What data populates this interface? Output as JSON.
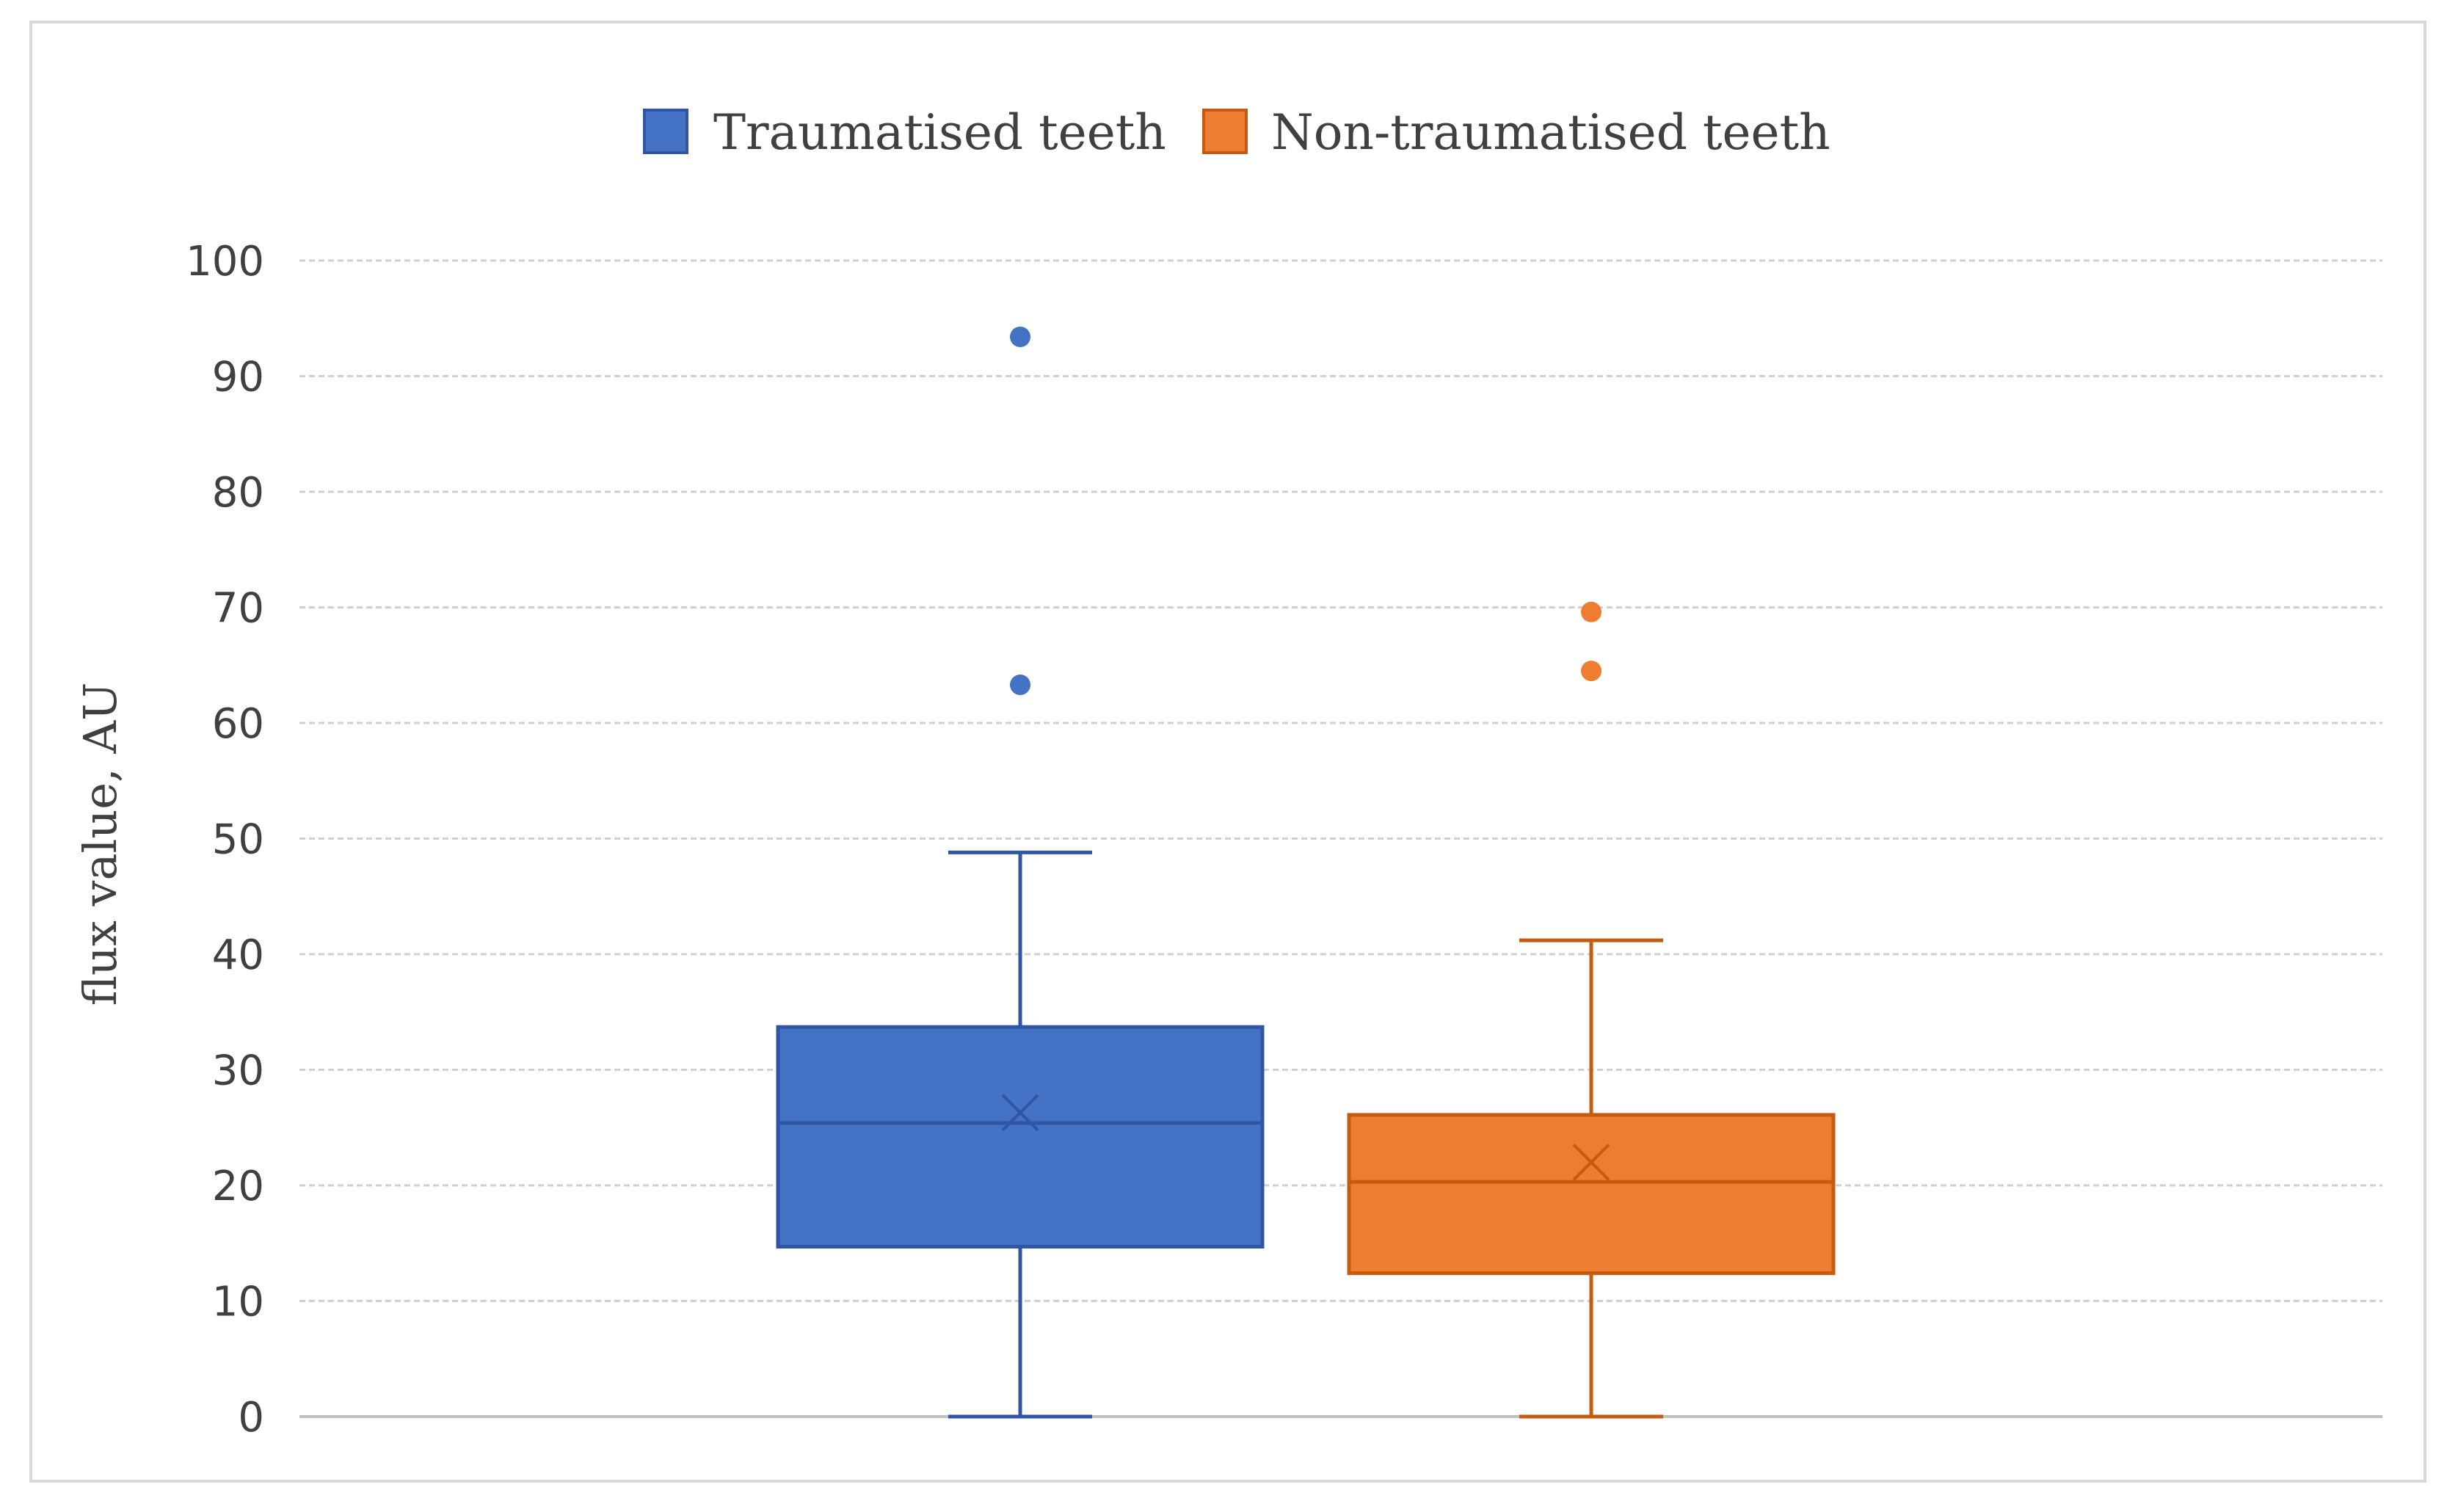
{
  "chart_data": {
    "type": "box",
    "title": "",
    "xlabel": "",
    "ylabel": "flux value, AU",
    "ylim": [
      0,
      100
    ],
    "yticks": [
      "0",
      "10",
      "20",
      "30",
      "40",
      "50",
      "60",
      "70",
      "80",
      "90",
      "100"
    ],
    "grid": true,
    "legend_position": "top",
    "series": [
      {
        "name": "Traumatised teeth",
        "color": "#4472c4",
        "min": 0,
        "q1": 14.7,
        "median": 25.4,
        "mean": 26.3,
        "q3": 33.7,
        "max": 48.8,
        "outliers": [
          63.3,
          93.4
        ]
      },
      {
        "name": "Non-traumatised teeth",
        "color": "#ed7d31",
        "min": 0,
        "q1": 12.4,
        "median": 20.3,
        "mean": 22.0,
        "q3": 26.1,
        "max": 41.2,
        "outliers": [
          64.5,
          69.6
        ]
      }
    ]
  }
}
